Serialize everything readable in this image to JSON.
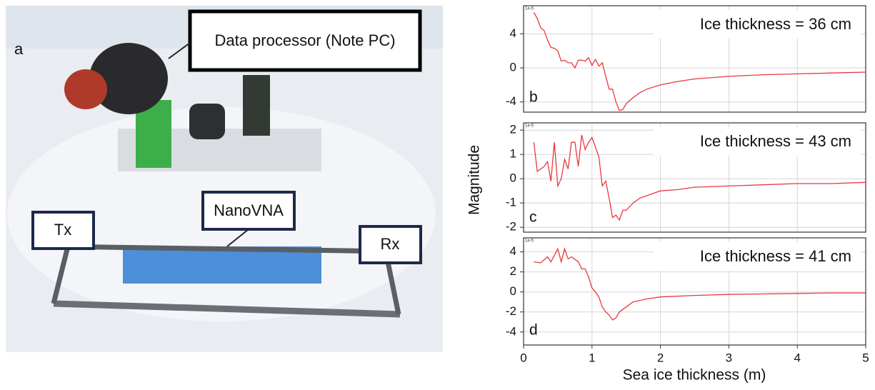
{
  "photo": {
    "panel_label": "a",
    "labels": [
      "Data processor (Note PC)",
      "NanoVNA",
      "Tx",
      "Rx"
    ]
  },
  "figure": {
    "y_label": "Magnitude",
    "x_label": "Sea ice thickness (m)"
  },
  "chart_data": [
    {
      "type": "line",
      "panel_label": "b",
      "annotation": "Ice thickness = 36 cm",
      "offset_label": "1e-5",
      "color": "#e8383d",
      "grid": true,
      "x": [
        0.15,
        0.2,
        0.25,
        0.3,
        0.35,
        0.4,
        0.45,
        0.5,
        0.55,
        0.6,
        0.65,
        0.7,
        0.75,
        0.8,
        0.85,
        0.9,
        0.95,
        1.0,
        1.05,
        1.1,
        1.15,
        1.2,
        1.25,
        1.3,
        1.35,
        1.4,
        1.45,
        1.5,
        1.6,
        1.7,
        1.8,
        2.0,
        2.25,
        2.5,
        3.0,
        3.5,
        4.0,
        4.5,
        5.0
      ],
      "values": [
        6.5,
        5.8,
        4.7,
        4.4,
        3.3,
        2.4,
        2.3,
        2.0,
        0.8,
        0.9,
        0.6,
        0.6,
        0.0,
        0.9,
        0.9,
        0.8,
        1.2,
        0.3,
        1.0,
        0.2,
        0.6,
        -1.0,
        -2.5,
        -2.5,
        -4.0,
        -5.0,
        -4.9,
        -4.2,
        -3.5,
        -2.9,
        -2.5,
        -2.0,
        -1.6,
        -1.3,
        -1.0,
        -0.8,
        -0.7,
        -0.6,
        -0.5
      ],
      "xlim": [
        0,
        5
      ],
      "xticks": [
        0,
        1,
        2,
        3,
        4,
        5
      ],
      "ylim": [
        -5.2,
        7.3
      ],
      "yticks": [
        -4,
        0,
        4
      ]
    },
    {
      "type": "line",
      "panel_label": "c",
      "annotation": "Ice thickness = 43 cm",
      "offset_label": "1e-5",
      "color": "#e8383d",
      "grid": true,
      "x": [
        0.15,
        0.2,
        0.3,
        0.35,
        0.4,
        0.45,
        0.5,
        0.55,
        0.6,
        0.65,
        0.7,
        0.75,
        0.8,
        0.85,
        0.9,
        0.95,
        1.0,
        1.05,
        1.1,
        1.15,
        1.2,
        1.25,
        1.3,
        1.35,
        1.4,
        1.45,
        1.5,
        1.6,
        1.7,
        1.8,
        2.0,
        2.25,
        2.5,
        3.0,
        3.5,
        4.0,
        4.5,
        5.0
      ],
      "values": [
        1.5,
        0.3,
        0.5,
        0.7,
        -0.1,
        1.5,
        -0.3,
        0.0,
        0.8,
        0.4,
        1.5,
        1.5,
        0.5,
        1.8,
        1.2,
        1.5,
        1.7,
        1.3,
        0.9,
        -0.3,
        -0.1,
        -0.8,
        -1.6,
        -1.5,
        -1.7,
        -1.3,
        -1.3,
        -1.0,
        -0.8,
        -0.7,
        -0.5,
        -0.45,
        -0.35,
        -0.3,
        -0.25,
        -0.2,
        -0.2,
        -0.15
      ],
      "xlim": [
        0,
        5
      ],
      "xticks": [
        0,
        1,
        2,
        3,
        4,
        5
      ],
      "ylim": [
        -2.2,
        2.3
      ],
      "yticks": [
        -2,
        -1,
        0,
        1,
        2
      ]
    },
    {
      "type": "line",
      "panel_label": "d",
      "annotation": "Ice thickness = 41 cm",
      "offset_label": "1e-5",
      "color": "#e8383d",
      "grid": true,
      "x": [
        0.15,
        0.25,
        0.35,
        0.4,
        0.5,
        0.55,
        0.6,
        0.65,
        0.7,
        0.8,
        0.85,
        0.9,
        0.95,
        1.0,
        1.05,
        1.1,
        1.15,
        1.2,
        1.25,
        1.3,
        1.35,
        1.4,
        1.5,
        1.6,
        1.8,
        2.0,
        2.5,
        3.0,
        3.5,
        4.0,
        4.5,
        5.0
      ],
      "values": [
        3.0,
        2.9,
        3.5,
        3.0,
        4.3,
        3.0,
        4.3,
        3.3,
        3.5,
        3.0,
        2.3,
        2.3,
        1.5,
        0.4,
        0.0,
        -0.5,
        -1.5,
        -2.0,
        -2.3,
        -2.8,
        -2.6,
        -2.0,
        -1.5,
        -1.0,
        -0.7,
        -0.5,
        -0.35,
        -0.25,
        -0.2,
        -0.15,
        -0.1,
        -0.1
      ],
      "xlim": [
        0,
        5
      ],
      "xticks": [
        0,
        1,
        2,
        3,
        4,
        5
      ],
      "ylim": [
        -5.3,
        5.4
      ],
      "yticks": [
        -4,
        -2,
        0,
        2,
        4
      ]
    }
  ]
}
